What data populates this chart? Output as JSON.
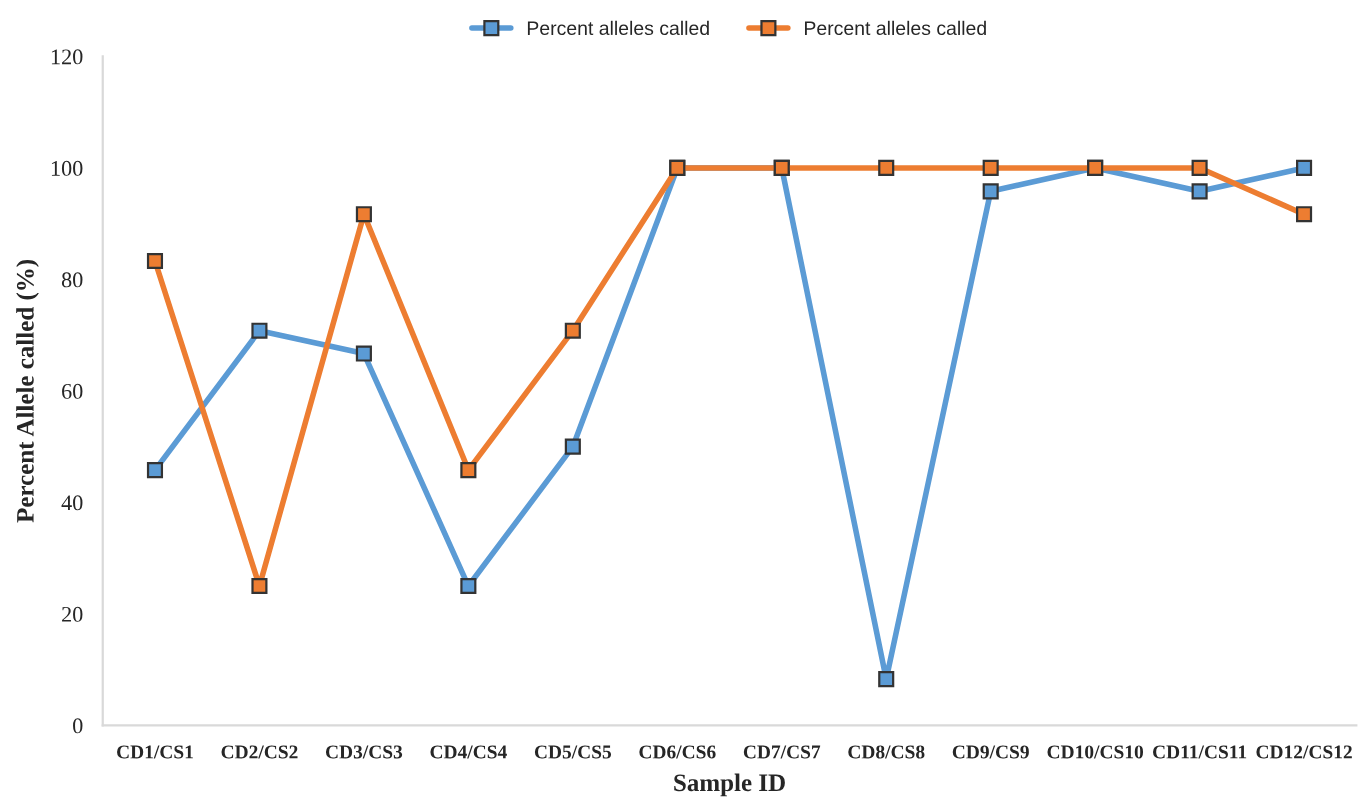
{
  "chart_data": {
    "type": "line",
    "xlabel": "Sample ID",
    "ylabel": "Percent Allele called (%)",
    "categories": [
      "CD1/CS1",
      "CD2/CS2",
      "CD3/CS3",
      "CD4/CS4",
      "CD5/CS5",
      "CD6/CS6",
      "CD7/CS7",
      "CD8/CS8",
      "CD9/CS9",
      "CD10/CS10",
      "CD11/CS11",
      "CD12/CS12"
    ],
    "series": [
      {
        "name": "Percent alleles called",
        "color": "#5b9bd5",
        "values": [
          45.8,
          70.8,
          66.7,
          25,
          50,
          100,
          100,
          8.3,
          95.8,
          100,
          95.8,
          100
        ]
      },
      {
        "name": "Percent alleles called",
        "color": "#ed7d31",
        "values": [
          83.3,
          25,
          91.7,
          45.8,
          70.8,
          100,
          100,
          100,
          100,
          100,
          100,
          91.7
        ]
      }
    ],
    "ylim": [
      0,
      120
    ],
    "yticks": [
      0,
      20,
      40,
      60,
      80,
      100,
      120
    ],
    "marker": "square",
    "line_style": "solid",
    "grid": false,
    "legend": "top"
  }
}
